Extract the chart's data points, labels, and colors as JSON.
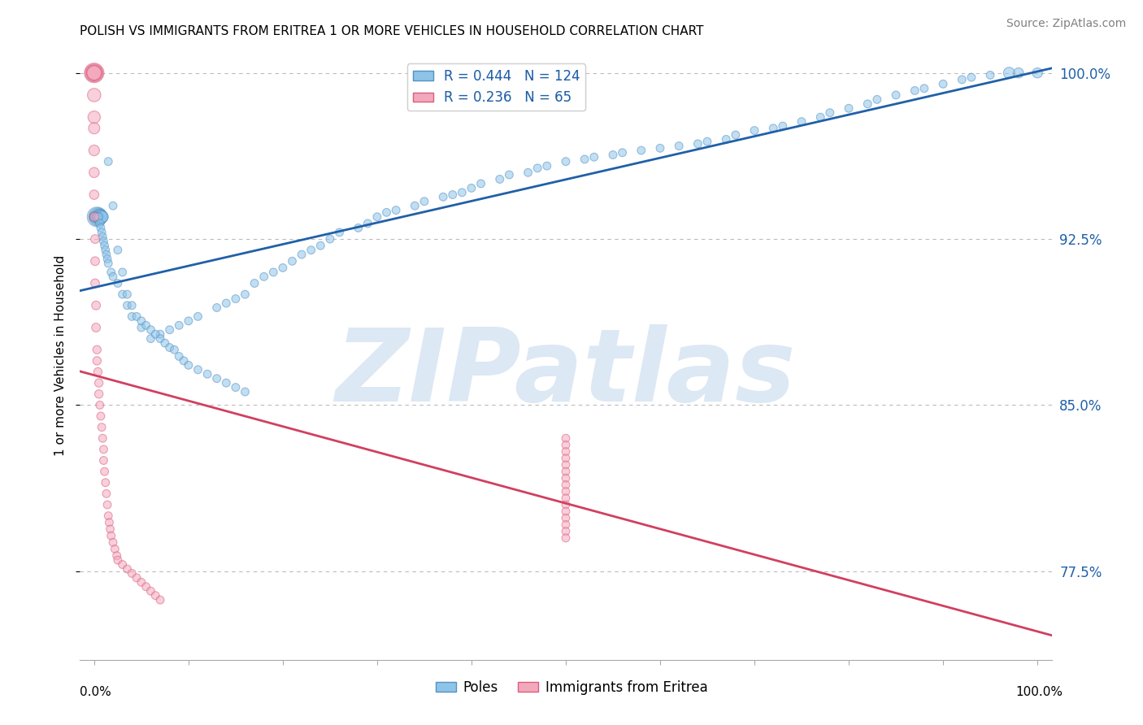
{
  "title": "POLISH VS IMMIGRANTS FROM ERITREA 1 OR MORE VEHICLES IN HOUSEHOLD CORRELATION CHART",
  "source": "Source: ZipAtlas.com",
  "ylabel": "1 or more Vehicles in Household",
  "blue_R": 0.444,
  "blue_N": 124,
  "pink_R": 0.236,
  "pink_N": 65,
  "blue_color": "#8ec4e8",
  "pink_color": "#f4a8bc",
  "blue_edge_color": "#5592c4",
  "pink_edge_color": "#d96080",
  "blue_line_color": "#2060a8",
  "pink_line_color": "#d04060",
  "tick_label_color": "#2060a8",
  "watermark_text": "ZIPatlas",
  "watermark_color": "#dce8f4",
  "legend_blue": "Poles",
  "legend_pink": "Immigrants from Eritrea",
  "ytick_vals": [
    0.775,
    0.85,
    0.925,
    1.0
  ],
  "ytick_labels": [
    "77.5%",
    "85.0%",
    "92.5%",
    "100.0%"
  ],
  "ylim": [
    0.735,
    1.01
  ],
  "xlim": [
    -0.015,
    1.015
  ],
  "blue_x": [
    0.003,
    0.004,
    0.005,
    0.006,
    0.006,
    0.007,
    0.008,
    0.009,
    0.0,
    0.0,
    0.0,
    0.001,
    0.001,
    0.002,
    0.002,
    0.003,
    0.003,
    0.004,
    0.005,
    0.006,
    0.007,
    0.008,
    0.009,
    0.01,
    0.011,
    0.012,
    0.013,
    0.014,
    0.015,
    0.018,
    0.02,
    0.025,
    0.03,
    0.035,
    0.04,
    0.05,
    0.06,
    0.07,
    0.08,
    0.09,
    0.1,
    0.11,
    0.13,
    0.14,
    0.15,
    0.16,
    0.17,
    0.18,
    0.19,
    0.2,
    0.21,
    0.22,
    0.23,
    0.24,
    0.25,
    0.26,
    0.28,
    0.29,
    0.3,
    0.31,
    0.32,
    0.34,
    0.35,
    0.37,
    0.38,
    0.39,
    0.4,
    0.41,
    0.43,
    0.44,
    0.46,
    0.47,
    0.48,
    0.5,
    0.52,
    0.53,
    0.55,
    0.56,
    0.58,
    0.6,
    0.62,
    0.64,
    0.65,
    0.67,
    0.68,
    0.7,
    0.72,
    0.73,
    0.75,
    0.77,
    0.78,
    0.8,
    0.82,
    0.83,
    0.85,
    0.87,
    0.88,
    0.9,
    0.92,
    0.93,
    0.95,
    0.97,
    0.98,
    1.0,
    0.015,
    0.02,
    0.025,
    0.03,
    0.035,
    0.04,
    0.045,
    0.05,
    0.055,
    0.06,
    0.065,
    0.07,
    0.075,
    0.08,
    0.085,
    0.09,
    0.095,
    0.1,
    0.11,
    0.12,
    0.13,
    0.14,
    0.15,
    0.16
  ],
  "blue_y": [
    0.935,
    0.935,
    0.935,
    0.935,
    0.935,
    0.935,
    0.935,
    0.935,
    0.935,
    0.935,
    0.935,
    0.935,
    0.935,
    0.935,
    0.935,
    0.935,
    0.935,
    0.935,
    0.935,
    0.932,
    0.93,
    0.928,
    0.926,
    0.924,
    0.922,
    0.92,
    0.918,
    0.916,
    0.914,
    0.91,
    0.908,
    0.905,
    0.9,
    0.895,
    0.89,
    0.885,
    0.88,
    0.882,
    0.884,
    0.886,
    0.888,
    0.89,
    0.894,
    0.896,
    0.898,
    0.9,
    0.905,
    0.908,
    0.91,
    0.912,
    0.915,
    0.918,
    0.92,
    0.922,
    0.925,
    0.928,
    0.93,
    0.932,
    0.935,
    0.937,
    0.938,
    0.94,
    0.942,
    0.944,
    0.945,
    0.946,
    0.948,
    0.95,
    0.952,
    0.954,
    0.955,
    0.957,
    0.958,
    0.96,
    0.961,
    0.962,
    0.963,
    0.964,
    0.965,
    0.966,
    0.967,
    0.968,
    0.969,
    0.97,
    0.972,
    0.974,
    0.975,
    0.976,
    0.978,
    0.98,
    0.982,
    0.984,
    0.986,
    0.988,
    0.99,
    0.992,
    0.993,
    0.995,
    0.997,
    0.998,
    0.999,
    1.0,
    1.0,
    1.0,
    0.96,
    0.94,
    0.92,
    0.91,
    0.9,
    0.895,
    0.89,
    0.888,
    0.886,
    0.884,
    0.882,
    0.88,
    0.878,
    0.876,
    0.875,
    0.872,
    0.87,
    0.868,
    0.866,
    0.864,
    0.862,
    0.86,
    0.858,
    0.856
  ],
  "blue_sizes": [
    300,
    250,
    200,
    180,
    160,
    140,
    120,
    100,
    80,
    70,
    60,
    60,
    60,
    60,
    60,
    60,
    55,
    55,
    55,
    55,
    50,
    50,
    50,
    50,
    50,
    50,
    50,
    50,
    50,
    50,
    50,
    50,
    50,
    50,
    50,
    50,
    50,
    50,
    50,
    50,
    50,
    50,
    50,
    50,
    50,
    50,
    50,
    50,
    50,
    50,
    50,
    50,
    50,
    50,
    50,
    50,
    50,
    50,
    50,
    50,
    50,
    50,
    50,
    50,
    50,
    50,
    50,
    50,
    50,
    50,
    50,
    50,
    50,
    50,
    50,
    50,
    50,
    50,
    50,
    50,
    50,
    50,
    50,
    50,
    50,
    50,
    50,
    50,
    50,
    50,
    50,
    50,
    50,
    50,
    50,
    50,
    50,
    50,
    50,
    50,
    50,
    100,
    80,
    80,
    50,
    50,
    50,
    50,
    50,
    50,
    50,
    50,
    50,
    50,
    50,
    50,
    50,
    50,
    50,
    50,
    50,
    50,
    50,
    50,
    50,
    50,
    50,
    50
  ],
  "pink_x": [
    0.0,
    0.0,
    0.0,
    0.0,
    0.0,
    0.0,
    0.0,
    0.0,
    0.0,
    0.0,
    0.0,
    0.0,
    0.001,
    0.001,
    0.001,
    0.002,
    0.002,
    0.003,
    0.003,
    0.004,
    0.005,
    0.005,
    0.006,
    0.007,
    0.008,
    0.009,
    0.01,
    0.01,
    0.011,
    0.012,
    0.013,
    0.014,
    0.015,
    0.016,
    0.017,
    0.018,
    0.02,
    0.022,
    0.024,
    0.025,
    0.03,
    0.035,
    0.04,
    0.045,
    0.05,
    0.055,
    0.06,
    0.065,
    0.07,
    0.5,
    0.5,
    0.5,
    0.5,
    0.5,
    0.5,
    0.5,
    0.5,
    0.5,
    0.5,
    0.5,
    0.5,
    0.5,
    0.5,
    0.5,
    0.5
  ],
  "pink_y": [
    1.0,
    1.0,
    1.0,
    1.0,
    1.0,
    0.99,
    0.98,
    0.975,
    0.965,
    0.955,
    0.945,
    0.935,
    0.925,
    0.915,
    0.905,
    0.895,
    0.885,
    0.875,
    0.87,
    0.865,
    0.86,
    0.855,
    0.85,
    0.845,
    0.84,
    0.835,
    0.83,
    0.825,
    0.82,
    0.815,
    0.81,
    0.805,
    0.8,
    0.797,
    0.794,
    0.791,
    0.788,
    0.785,
    0.782,
    0.78,
    0.778,
    0.776,
    0.774,
    0.772,
    0.77,
    0.768,
    0.766,
    0.764,
    0.762,
    0.835,
    0.832,
    0.829,
    0.826,
    0.823,
    0.82,
    0.817,
    0.814,
    0.811,
    0.808,
    0.805,
    0.802,
    0.799,
    0.796,
    0.793,
    0.79
  ],
  "pink_sizes": [
    300,
    250,
    200,
    180,
    160,
    140,
    120,
    100,
    90,
    80,
    70,
    65,
    60,
    60,
    60,
    60,
    60,
    55,
    55,
    55,
    55,
    55,
    50,
    50,
    50,
    50,
    50,
    50,
    50,
    50,
    50,
    50,
    50,
    50,
    50,
    50,
    50,
    50,
    50,
    50,
    50,
    50,
    50,
    50,
    50,
    50,
    50,
    50,
    50,
    50,
    50,
    50,
    50,
    50,
    50,
    50,
    50,
    50,
    50,
    50,
    50,
    50,
    50,
    50,
    50
  ]
}
